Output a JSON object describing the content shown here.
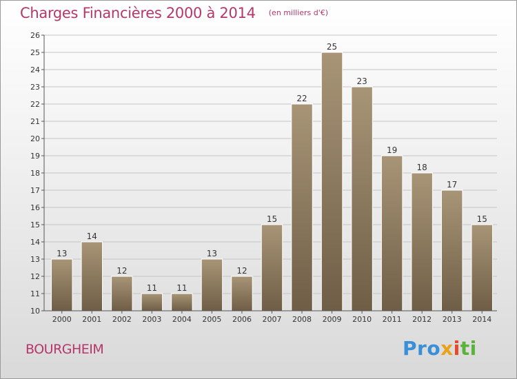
{
  "chart_data": {
    "type": "bar",
    "title": "Charges Financières 2000 à 2014",
    "subtitle": "(en milliers d'€)",
    "xlabel": "",
    "ylabel": "",
    "categories": [
      "2000",
      "2001",
      "2002",
      "2003",
      "2004",
      "2005",
      "2006",
      "2007",
      "2008",
      "2009",
      "2010",
      "2011",
      "2012",
      "2013",
      "2014"
    ],
    "values": [
      13,
      14,
      12,
      11,
      11,
      13,
      12,
      15,
      22,
      25,
      23,
      19,
      18,
      17,
      15
    ],
    "ylim": [
      10,
      26
    ],
    "yticks": [
      10,
      11,
      12,
      13,
      14,
      15,
      16,
      17,
      18,
      19,
      20,
      21,
      22,
      23,
      24,
      25,
      26
    ],
    "grid": true,
    "bar_color": "#8d7a5e",
    "bar_color_light": "#a89577",
    "bar_color_dark": "#6f5e46",
    "grid_color": "#c4c4c4"
  },
  "footer": {
    "place": "BOURGHEIM",
    "logo": [
      "Pro",
      "x",
      "i",
      "ti"
    ]
  }
}
